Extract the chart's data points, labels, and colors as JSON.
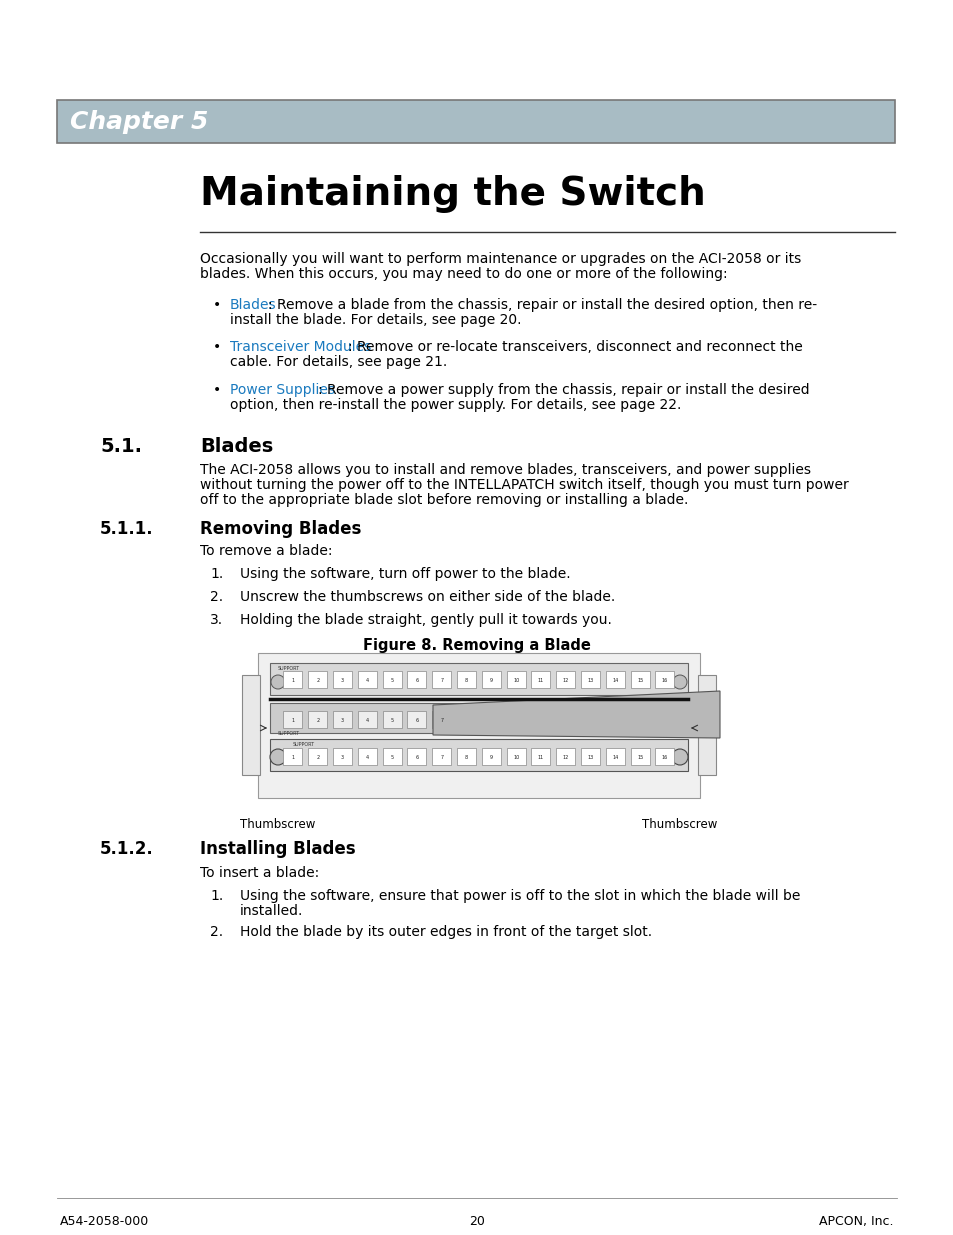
{
  "page_bg": "#ffffff",
  "chapter_bg": "#a8bcc4",
  "chapter_border": "#777777",
  "chapter_text": "Chapter 5",
  "chapter_text_color": "#ffffff",
  "title": "Maintaining the Switch",
  "title_color": "#000000",
  "section_51_num": "5.1.",
  "section_51_title": "Blades",
  "section_511_num": "5.1.1.",
  "section_511_title": "Removing Blades",
  "section_512_num": "5.1.2.",
  "section_512_title": "Installing Blades",
  "intro_line1": "Occasionally you will want to perform maintenance or upgrades on the ACI-2058 or its",
  "intro_line2": "blades. When this occurs, you may need to do one or more of the following:",
  "bullet1_label": "Blades",
  "bullet1_rest": ": Remove a blade from the chassis, repair or install the desired option, then re-",
  "bullet1_line2": "install the blade. For details, see page 20.",
  "bullet2_label": "Transceiver Modules",
  "bullet2_rest": ": Remove or re-locate transceivers, disconnect and reconnect the",
  "bullet2_line2": "cable. For details, see page 21.",
  "bullet3_label": "Power Supplies",
  "bullet3_rest": ": Remove a power supply from the chassis, repair or install the desired",
  "bullet3_line2": "option, then re-install the power supply. For details, see page 22.",
  "link_color": "#1a7abf",
  "blades_line1": "The ACI-2058 allows you to install and remove blades, transceivers, and power supplies",
  "blades_line2": "without turning the power off to the INTELLAPATCH switch itself, though you must turn power",
  "blades_line3": "off to the appropriate blade slot before removing or installing a blade.",
  "removing_intro": "To remove a blade:",
  "removing_step1": "Using the software, turn off power to the blade.",
  "removing_step2": "Unscrew the thumbscrews on either side of the blade.",
  "removing_step3": "Holding the blade straight, gently pull it towards you.",
  "figure_caption": "Figure 8. Removing a Blade",
  "thumbscrew_left": "Thumbscrew",
  "thumbscrew_right": "Thumbscrew",
  "installing_intro": "To insert a blade:",
  "installing_step1_line1": "Using the software, ensure that power is off to the slot in which the blade will be",
  "installing_step1_line2": "installed.",
  "installing_step2": "Hold the blade by its outer edges in front of the target slot.",
  "footer_left": "A54-2058-000",
  "footer_center": "20",
  "footer_right": "APCON, Inc.",
  "body_fs": 10,
  "section_fs": 14,
  "subsection_fs": 12,
  "title_fs": 28,
  "chapter_fs": 18
}
